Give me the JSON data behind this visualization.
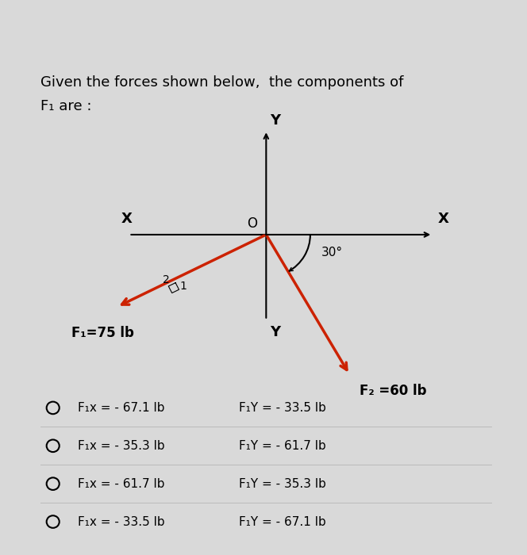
{
  "title_line1": "Given the forces shown below,  the components of",
  "title_line2": "F₁ are :",
  "bg_color": "#d9d9d9",
  "card_color": "#e8e8e8",
  "teal_bar_color": "#00bcd4",
  "force_color": "#cc2200",
  "f1_label": "F₁=75 lb",
  "f2_label": "F₂ =60 lb",
  "choices": [
    {
      "opt": "F₁x = - 67.1 lb",
      "opt2": "F₁Y = - 33.5 lb"
    },
    {
      "opt": "F₁x = - 35.3 lb",
      "opt2": "F₁Y = - 61.7 lb"
    },
    {
      "opt": "F₁x = - 61.7 lb",
      "opt2": "F₁Y = - 35.3 lb"
    },
    {
      "opt": "F₁x = - 33.5 lb",
      "opt2": "F₁Y = - 67.1 lb"
    }
  ],
  "font_size_title": 13,
  "font_size_choices": 11
}
